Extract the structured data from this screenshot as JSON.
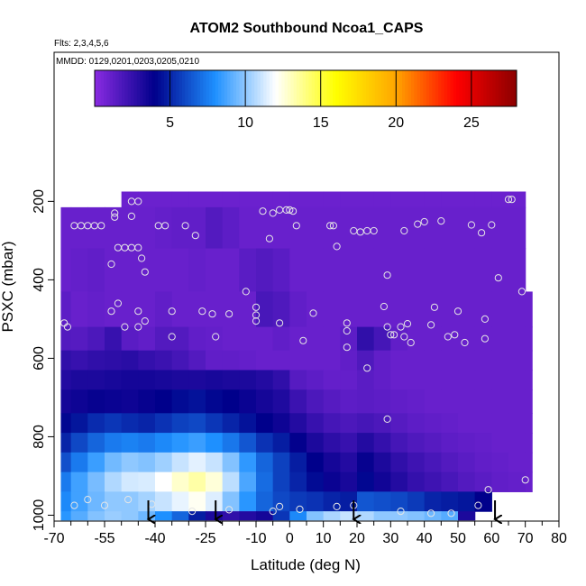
{
  "chart_data": {
    "type": "heatmap",
    "title": "ATOM2 Southbound Ncoa1_CAPS",
    "flights_note": "Flts: 2,3,4,5,6",
    "dates_note": "MMDD: 0129,0201,0203,0205,0210",
    "xlabel": "Latitude (deg N)",
    "ylabel": "PSXC (mbar)",
    "x_ticks": [
      "-70",
      "-55",
      "-40",
      "-25",
      "-10",
      "0",
      "10",
      "20",
      "30",
      "40",
      "50",
      "60",
      "70",
      "80"
    ],
    "x_tick_values": [
      -70,
      -55,
      -40,
      -25,
      -10,
      0,
      10,
      20,
      30,
      40,
      50,
      60,
      70,
      80
    ],
    "x_minor_ticks": [
      -65,
      -60,
      -50,
      -45,
      -35,
      -30,
      -20,
      -15,
      -5,
      5,
      15,
      25,
      35,
      45,
      55,
      65,
      75
    ],
    "xlim": [
      -70,
      80
    ],
    "y_ticks": [
      "1000",
      "800",
      "600",
      "400",
      "200"
    ],
    "y_tick_values": [
      1000,
      800,
      600,
      400,
      200
    ],
    "ylim": [
      1015,
      -180
    ],
    "colorbar": {
      "ticks": [
        "5",
        "10",
        "15",
        "20",
        "25"
      ],
      "tick_values": [
        5,
        10,
        15,
        20,
        25
      ],
      "range": [
        0,
        28
      ],
      "colormap": [
        "#8a2be2",
        "#00008b",
        "#1e90ff",
        "#ffffff",
        "#ffff00",
        "#ffa500",
        "#ff0000",
        "#8b0000"
      ]
    },
    "grid": false,
    "heatmap": {
      "lat_edges": [
        -68,
        -65,
        -60,
        -55,
        -50,
        -45,
        -40,
        -35,
        -30,
        -25,
        -20,
        -15,
        -10,
        -5,
        0,
        5,
        10,
        15,
        20,
        25,
        30,
        35,
        40,
        45,
        50,
        55,
        60,
        65,
        70,
        72
      ],
      "pressure_bands": [
        {
          "p": [
            175,
            215
          ],
          "values": [
            null,
            null,
            null,
            null,
            0.9,
            0.9,
            0.9,
            0.9,
            0.9,
            0.9,
            0.9,
            0.9,
            0.9,
            0.9,
            0.9,
            0.9,
            0.9,
            0.9,
            0.9,
            0.9,
            0.9,
            0.9,
            0.9,
            0.9,
            0.9,
            0.9,
            0.9,
            0.9,
            null
          ]
        },
        {
          "p": [
            215,
            320
          ],
          "values": [
            1.0,
            1.0,
            1.0,
            1.0,
            1.0,
            1.0,
            1.1,
            1.2,
            1.2,
            1.6,
            1.3,
            1.0,
            1.0,
            1.0,
            1.0,
            1.0,
            1.0,
            1.0,
            1.0,
            1.0,
            1.0,
            1.0,
            1.0,
            1.0,
            1.0,
            1.0,
            1.0,
            1.0,
            null
          ]
        },
        {
          "p": [
            320,
            430
          ],
          "values": [
            1.0,
            1.1,
            1.2,
            1.0,
            1.0,
            1.0,
            1.0,
            1.0,
            1.1,
            1.0,
            1.0,
            1.4,
            1.6,
            1.4,
            1.0,
            1.0,
            1.0,
            1.0,
            1.0,
            1.0,
            1.0,
            1.0,
            1.0,
            1.0,
            1.0,
            1.0,
            1.0,
            1.0,
            null
          ]
        },
        {
          "p": [
            430,
            520
          ],
          "values": [
            1.3,
            1.0,
            1.1,
            1.0,
            1.0,
            1.0,
            1.2,
            1.0,
            1.0,
            1.0,
            1.0,
            1.0,
            1.9,
            1.7,
            1.2,
            1.0,
            1.0,
            1.0,
            1.0,
            1.0,
            1.0,
            1.0,
            1.0,
            1.0,
            1.0,
            1.0,
            1.0,
            1.0,
            1.0
          ]
        },
        {
          "p": [
            520,
            580
          ],
          "values": [
            1.6,
            1.5,
            1.8,
            2.4,
            1.4,
            1.2,
            1.6,
            1.6,
            1.2,
            1.1,
            1.0,
            1.0,
            1.0,
            1.2,
            1.0,
            1.0,
            1.0,
            1.3,
            2.6,
            2.0,
            1.2,
            1.0,
            1.0,
            1.0,
            1.0,
            1.0,
            1.0,
            1.0,
            1.0
          ]
        },
        {
          "p": [
            580,
            630
          ],
          "values": [
            2.6,
            2.4,
            2.6,
            2.7,
            2.8,
            2.5,
            2.3,
            2.0,
            1.6,
            1.2,
            1.2,
            1.1,
            1.0,
            1.0,
            1.0,
            1.0,
            1.0,
            1.2,
            1.7,
            1.2,
            1.0,
            1.0,
            1.0,
            1.0,
            1.0,
            1.0,
            1.0,
            1.0,
            1.0
          ]
        },
        {
          "p": [
            630,
            680
          ],
          "values": [
            3.0,
            3.2,
            3.2,
            3.3,
            3.4,
            3.4,
            3.3,
            3.2,
            3.2,
            3.3,
            3.2,
            3.2,
            3.0,
            2.6,
            1.5,
            1.3,
            1.1,
            1.1,
            1.4,
            1.2,
            1.0,
            1.0,
            1.0,
            1.0,
            1.0,
            1.0,
            1.0,
            1.0,
            1.0
          ]
        },
        {
          "p": [
            680,
            740
          ],
          "values": [
            3.4,
            3.6,
            3.8,
            3.7,
            3.6,
            3.8,
            4.0,
            4.3,
            4.5,
            4.2,
            4.0,
            3.7,
            3.4,
            3.1,
            2.3,
            1.8,
            1.5,
            1.3,
            1.4,
            1.3,
            1.2,
            1.1,
            1.0,
            1.0,
            1.0,
            1.0,
            1.0,
            1.0,
            1.0
          ]
        },
        {
          "p": [
            740,
            790
          ],
          "values": [
            4.2,
            4.6,
            5.2,
            5.5,
            5.2,
            5.0,
            5.4,
            5.8,
            6.0,
            5.5,
            5.0,
            4.5,
            4.0,
            3.6,
            3.0,
            2.4,
            2.0,
            1.8,
            2.0,
            1.8,
            1.5,
            1.3,
            1.2,
            1.1,
            1.0,
            1.0,
            1.0,
            1.0,
            1.0
          ]
        },
        {
          "p": [
            790,
            840
          ],
          "values": [
            5.0,
            6.0,
            6.8,
            7.4,
            7.6,
            7.4,
            7.8,
            8.2,
            8.5,
            8.0,
            7.3,
            6.4,
            5.4,
            4.8,
            3.9,
            3.2,
            2.7,
            2.4,
            3.0,
            2.5,
            2.0,
            1.7,
            1.5,
            1.3,
            1.2,
            1.1,
            1.0,
            1.0,
            1.0
          ]
        },
        {
          "p": [
            840,
            890
          ],
          "values": [
            6.2,
            7.4,
            8.5,
            9.5,
            10.0,
            9.8,
            10.3,
            11.0,
            11.5,
            11.0,
            9.8,
            8.3,
            6.8,
            5.8,
            4.8,
            4.0,
            3.4,
            3.0,
            3.8,
            3.2,
            2.6,
            2.2,
            1.9,
            1.6,
            1.4,
            1.2,
            1.1,
            1.0,
            1.0
          ]
        },
        {
          "p": [
            890,
            940
          ],
          "values": [
            7.4,
            8.6,
            9.6,
            10.6,
            11.2,
            11.3,
            12.0,
            12.8,
            13.4,
            12.6,
            10.8,
            8.8,
            7.0,
            5.8,
            5.0,
            4.3,
            3.7,
            3.3,
            4.2,
            3.5,
            3.0,
            2.5,
            2.2,
            1.9,
            1.6,
            1.4,
            1.2,
            1.1,
            1.0
          ]
        },
        {
          "p": [
            940,
            990
          ],
          "values": [
            7.8,
            8.6,
            9.4,
            10.0,
            10.0,
            10.4,
            11.0,
            11.6,
            12.2,
            11.4,
            9.8,
            8.2,
            6.8,
            6.0,
            5.6,
            5.4,
            5.0,
            4.8,
            6.4,
            6.2,
            6.0,
            5.6,
            5.0,
            4.8,
            4.6,
            4.0,
            null,
            null,
            null
          ]
        },
        {
          "p": [
            990,
            1012
          ],
          "values": [
            8.2,
            9.0,
            9.8,
            10.2,
            10.0,
            9.4,
            8.0,
            6.8,
            4.8,
            3.2,
            2.6,
            3.0,
            3.4,
            5.5,
            7.8,
            9.8,
            10.5,
            11.0,
            10.6,
            10.0,
            10.0,
            9.8,
            9.4,
            9.0,
            3.2,
            null,
            null,
            null,
            null
          ]
        }
      ]
    },
    "observation_points": [
      [
        -67,
        510
      ],
      [
        -66,
        520
      ],
      [
        -64,
        262
      ],
      [
        -62,
        262
      ],
      [
        -60,
        262
      ],
      [
        -58,
        262
      ],
      [
        -56,
        262
      ],
      [
        -52,
        230
      ],
      [
        -52,
        240
      ],
      [
        -53,
        360
      ],
      [
        -53,
        480
      ],
      [
        -51,
        318
      ],
      [
        -51,
        460
      ],
      [
        -49,
        318
      ],
      [
        -49,
        520
      ],
      [
        -47,
        318
      ],
      [
        -45,
        318
      ],
      [
        -45,
        480
      ],
      [
        -44,
        345
      ],
      [
        -45,
        520
      ],
      [
        -43,
        380
      ],
      [
        -43,
        505
      ],
      [
        -47,
        238
      ],
      [
        -47,
        200
      ],
      [
        -45,
        200
      ],
      [
        -39,
        262
      ],
      [
        -37,
        262
      ],
      [
        -35,
        480
      ],
      [
        -35,
        545
      ],
      [
        -31,
        262
      ],
      [
        -26,
        480
      ],
      [
        -23,
        487
      ],
      [
        -28,
        287
      ],
      [
        -22,
        545
      ],
      [
        -18,
        487
      ],
      [
        -13,
        430
      ],
      [
        -8,
        225
      ],
      [
        -5,
        230
      ],
      [
        -3,
        222
      ],
      [
        -1,
        222
      ],
      [
        0,
        222
      ],
      [
        1,
        225
      ],
      [
        -6,
        295
      ],
      [
        -10,
        470
      ],
      [
        -10,
        490
      ],
      [
        -10,
        505
      ],
      [
        -3,
        510
      ],
      [
        2,
        262
      ],
      [
        4,
        555
      ],
      [
        7,
        485
      ],
      [
        12,
        262
      ],
      [
        13,
        262
      ],
      [
        14,
        315
      ],
      [
        17,
        510
      ],
      [
        17,
        530
      ],
      [
        17,
        572
      ],
      [
        19,
        275
      ],
      [
        21,
        278
      ],
      [
        23,
        275
      ],
      [
        25,
        275
      ],
      [
        28,
        468
      ],
      [
        29,
        388
      ],
      [
        29,
        520
      ],
      [
        30,
        540
      ],
      [
        31,
        540
      ],
      [
        34,
        275
      ],
      [
        34,
        545
      ],
      [
        33,
        520
      ],
      [
        35,
        512
      ],
      [
        36,
        560
      ],
      [
        38,
        258
      ],
      [
        40,
        252
      ],
      [
        42,
        515
      ],
      [
        43,
        470
      ],
      [
        45,
        250
      ],
      [
        47,
        545
      ],
      [
        49,
        540
      ],
      [
        50,
        480
      ],
      [
        52,
        560
      ],
      [
        54,
        260
      ],
      [
        57,
        280
      ],
      [
        58,
        500
      ],
      [
        58,
        550
      ],
      [
        60,
        260
      ],
      [
        62,
        395
      ],
      [
        65,
        195
      ],
      [
        66,
        195
      ],
      [
        69,
        430
      ],
      [
        70,
        910
      ],
      [
        -60,
        960
      ],
      [
        -55,
        975
      ],
      [
        -48,
        960
      ],
      [
        -41,
        972
      ],
      [
        -29,
        990
      ],
      [
        -18,
        986
      ],
      [
        -3,
        978
      ],
      [
        -5,
        990
      ],
      [
        3,
        985
      ],
      [
        14,
        978
      ],
      [
        19,
        975
      ],
      [
        33,
        990
      ],
      [
        42,
        995
      ],
      [
        48,
        995
      ],
      [
        56,
        975
      ],
      [
        59,
        935
      ],
      [
        29,
        755
      ],
      [
        23,
        625
      ],
      [
        -64,
        975
      ]
    ],
    "arrow_latitudes": [
      -42,
      -22,
      19,
      61
    ]
  }
}
